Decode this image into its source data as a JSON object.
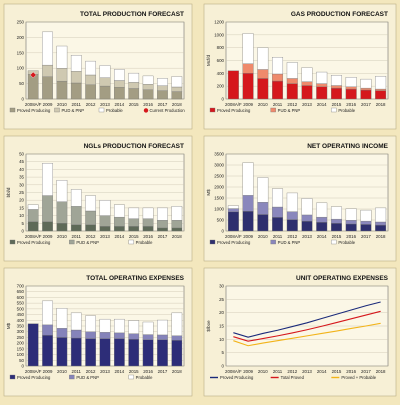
{
  "panels": [
    {
      "title": "TOTAL PRODUCTION FORECAST",
      "ylabel": "",
      "chart_data": {
        "type": "bar",
        "stacked": true,
        "categories": [
          "2008A/F",
          "2009",
          "2010",
          "2011",
          "2012",
          "2013",
          "2014",
          "2015",
          "2016",
          "2017",
          "2018"
        ],
        "ylim": [
          0,
          250
        ],
        "yticks": [
          0,
          50,
          100,
          150,
          200,
          250
        ],
        "series": [
          {
            "name": "Proved Producing",
            "color": "#a39d83",
            "values": [
              80,
              72,
              58,
              52,
              46,
              42,
              38,
              34,
              30,
              27,
              24
            ]
          },
          {
            "name": "PUD & PNP",
            "color": "#cfc9b1",
            "values": [
              12,
              38,
              42,
              38,
              32,
              27,
              22,
              20,
              18,
              16,
              15
            ]
          },
          {
            "name": "Probable",
            "color": "#ffffff",
            "values": [
              0,
              108,
              72,
              52,
              45,
              40,
              36,
              30,
              27,
              24,
              34
            ]
          }
        ],
        "markers": [
          {
            "name": "Current Production",
            "color": "#d5171c",
            "category": "2008A/F",
            "value": 78
          }
        ],
        "legend": [
          "Proved Producing",
          "PUD & PNP",
          "Probable",
          "Current Production"
        ]
      }
    },
    {
      "title": "GAS PRODUCTION FORECAST",
      "ylabel": "Mcf/d",
      "chart_data": {
        "type": "bar",
        "stacked": true,
        "categories": [
          "2008A/F",
          "2009",
          "2010",
          "2011",
          "2012",
          "2013",
          "2014",
          "2015",
          "2016",
          "2017",
          "2018"
        ],
        "ylim": [
          0,
          1200
        ],
        "yticks": [
          0,
          200,
          400,
          600,
          800,
          1000,
          1200
        ],
        "series": [
          {
            "name": "Proved Producing",
            "color": "#d5171c",
            "values": [
              440,
              400,
              320,
              280,
              240,
              210,
              190,
              170,
              155,
              140,
              130
            ]
          },
          {
            "name": "PUD & PNP",
            "color": "#ef8a6c",
            "values": [
              0,
              150,
              140,
              110,
              80,
              60,
              50,
              40,
              35,
              30,
              25
            ]
          },
          {
            "name": "Probable",
            "color": "#ffffff",
            "values": [
              0,
              470,
              340,
              260,
              250,
              220,
              180,
              160,
              150,
              140,
              200
            ]
          }
        ],
        "legend": [
          "Proved Producing",
          "PUD & PNP",
          "Probable"
        ]
      }
    },
    {
      "title": "NGLs PRODUCTION FORECAST",
      "ylabel": "bbl/d",
      "chart_data": {
        "type": "bar",
        "stacked": true,
        "categories": [
          "2008A/F",
          "2009",
          "2010",
          "2011",
          "2012",
          "2013",
          "2014",
          "2015",
          "2016",
          "2017",
          "2018"
        ],
        "ylim": [
          0,
          50
        ],
        "yticks": [
          0,
          5,
          10,
          15,
          20,
          25,
          30,
          35,
          40,
          45,
          50
        ],
        "series": [
          {
            "name": "Proved Producing",
            "color": "#5e6a58",
            "values": [
              6,
              6,
              5,
              4,
              4,
              3,
              3,
              3,
              3,
              2,
              2
            ]
          },
          {
            "name": "PUD & PNP",
            "color": "#a0a597",
            "values": [
              8,
              17,
              14,
              12,
              9,
              7,
              6,
              5,
              5,
              5,
              5
            ]
          },
          {
            "name": "Probable",
            "color": "#ffffff",
            "values": [
              3,
              21,
              14,
              11,
              10,
              10,
              8,
              7,
              7,
              8,
              9
            ]
          }
        ],
        "legend": [
          "Proved Producing",
          "PUD & PNP",
          "Probable"
        ]
      }
    },
    {
      "title": "NET OPERATING INCOME",
      "ylabel": "M$",
      "chart_data": {
        "type": "bar",
        "stacked": true,
        "categories": [
          "2008A/F",
          "2009",
          "2010",
          "2011",
          "2012",
          "2013",
          "2014",
          "2015",
          "2016",
          "2017",
          "2018"
        ],
        "ylim": [
          0,
          3500
        ],
        "yticks": [
          0,
          500,
          1000,
          1500,
          2000,
          2500,
          3000,
          3500
        ],
        "series": [
          {
            "name": "Proved Producing",
            "color": "#2e2f6e",
            "values": [
              870,
              900,
              750,
              620,
              520,
              450,
              400,
              350,
              320,
              300,
              270
            ]
          },
          {
            "name": "PUD & PNP",
            "color": "#8a87bc",
            "values": [
              150,
              720,
              560,
              470,
              360,
              280,
              230,
              190,
              170,
              150,
              140
            ]
          },
          {
            "name": "Probable",
            "color": "#ffffff",
            "values": [
              130,
              1480,
              1120,
              830,
              850,
              750,
              650,
              560,
              520,
              500,
              640
            ]
          }
        ],
        "legend": [
          "Proved Producing",
          "PUD & PNP",
          "Probable"
        ]
      }
    },
    {
      "title": "TOTAL OPERATING EXPENSES",
      "ylabel": "M$",
      "chart_data": {
        "type": "bar",
        "stacked": true,
        "categories": [
          "2008A/F",
          "2009",
          "2010",
          "2011",
          "2012",
          "2013",
          "2014",
          "2015",
          "2016",
          "2017",
          "2018"
        ],
        "ylim": [
          0,
          700
        ],
        "yticks": [
          0,
          50,
          100,
          150,
          200,
          250,
          300,
          350,
          400,
          450,
          500,
          550,
          600,
          650,
          700
        ],
        "series": [
          {
            "name": "Proved Producing",
            "color": "#2d2d78",
            "values": [
              370,
              270,
              250,
              245,
              240,
              240,
              240,
              235,
              230,
              230,
              225
            ]
          },
          {
            "name": "PUD & PNP",
            "color": "#8583ba",
            "values": [
              0,
              90,
              80,
              70,
              60,
              55,
              50,
              48,
              45,
              42,
              40
            ]
          },
          {
            "name": "Probable",
            "color": "#ffffff",
            "values": [
              0,
              210,
              175,
              150,
              140,
              115,
              120,
              115,
              110,
              130,
              200
            ]
          }
        ],
        "legend": [
          "Proved Producing",
          "PUD & PNP",
          "Probable"
        ]
      }
    },
    {
      "title": "UNIT OPERATING EXPENSES",
      "ylabel": "$/boe",
      "chart_data": {
        "type": "line",
        "categories": [
          "2008A/F",
          "2009",
          "2010",
          "2011",
          "2012",
          "2013",
          "2014",
          "2015",
          "2016",
          "2017",
          "2018"
        ],
        "ylim": [
          0,
          30
        ],
        "yticks": [
          0,
          5,
          10,
          15,
          20,
          25,
          30
        ],
        "series": [
          {
            "name": "Proved Producing",
            "color": "#1a2a7a",
            "values": [
              12.5,
              10.8,
              12.2,
              13.4,
              14.8,
              16.2,
              17.8,
              19.4,
              21.0,
              22.6,
              24.0
            ]
          },
          {
            "name": "Total Proved",
            "color": "#d5171c",
            "values": [
              11.0,
              9.3,
              10.3,
              11.3,
              12.4,
              13.6,
              14.9,
              16.3,
              17.7,
              19.1,
              20.5
            ]
          },
          {
            "name": "Proved + Probable",
            "color": "#f2b319",
            "values": [
              9.5,
              7.6,
              8.6,
              9.5,
              10.4,
              11.3,
              12.2,
              13.1,
              14.1,
              15.0,
              16.0
            ]
          }
        ],
        "legend": [
          "Proved Producing",
          "Total Proved",
          "Proved + Probable"
        ]
      }
    }
  ]
}
